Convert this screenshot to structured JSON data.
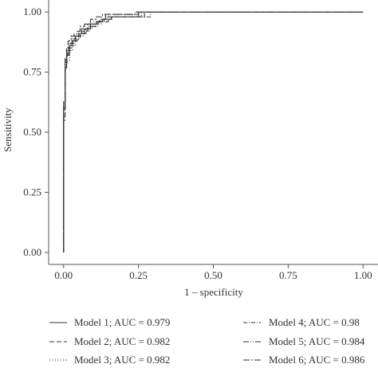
{
  "chart_data": {
    "type": "line",
    "title": "",
    "xlabel": "1 – specificity",
    "ylabel": "Sensitivity",
    "xlim": [
      -0.05,
      1.05
    ],
    "ylim": [
      -0.05,
      1.05
    ],
    "x_ticks": [
      0.0,
      0.25,
      0.5,
      0.75,
      1.0
    ],
    "x_tick_labels": [
      "0.00",
      "0.25",
      "0.50",
      "0.75",
      "1.00"
    ],
    "y_ticks": [
      0.0,
      0.25,
      0.5,
      0.75,
      1.0
    ],
    "y_tick_labels": [
      "0.00",
      "0.25",
      "0.50",
      "0.75",
      "1.00"
    ],
    "grid": false,
    "legend_position": "bottom",
    "series": [
      {
        "name": "Model 1; AUC = 0.979",
        "dash": "",
        "x": [
          0,
          0,
          0.005,
          0.005,
          0.01,
          0.01,
          0.02,
          0.02,
          0.03,
          0.03,
          0.04,
          0.04,
          0.05,
          0.05,
          0.07,
          0.07,
          0.09,
          0.09,
          0.11,
          0.11,
          0.13,
          0.13,
          0.16,
          0.16,
          0.25,
          0.25,
          0.28,
          0.28,
          1.0
        ],
        "y": [
          0,
          0.6,
          0.6,
          0.78,
          0.78,
          0.82,
          0.82,
          0.86,
          0.86,
          0.88,
          0.88,
          0.9,
          0.9,
          0.91,
          0.91,
          0.93,
          0.93,
          0.95,
          0.95,
          0.96,
          0.96,
          0.97,
          0.97,
          0.98,
          0.98,
          1.0,
          1.0,
          1.0,
          1.0
        ]
      },
      {
        "name": "Model 2; AUC = 0.982",
        "dash": "6 3",
        "x": [
          0,
          0,
          0.005,
          0.005,
          0.01,
          0.01,
          0.015,
          0.015,
          0.025,
          0.025,
          0.035,
          0.035,
          0.045,
          0.045,
          0.06,
          0.06,
          0.08,
          0.08,
          0.1,
          0.1,
          0.12,
          0.12,
          0.15,
          0.15,
          0.27,
          0.27,
          1.0
        ],
        "y": [
          0,
          0.55,
          0.55,
          0.77,
          0.77,
          0.82,
          0.82,
          0.85,
          0.85,
          0.87,
          0.87,
          0.89,
          0.89,
          0.9,
          0.9,
          0.92,
          0.92,
          0.94,
          0.94,
          0.95,
          0.95,
          0.96,
          0.96,
          0.98,
          0.98,
          1.0,
          1.0
        ]
      },
      {
        "name": "Model 3; AUC = 0.982",
        "dash": "1.2 2.2",
        "x": [
          0,
          0,
          0.005,
          0.005,
          0.01,
          0.01,
          0.02,
          0.02,
          0.03,
          0.03,
          0.04,
          0.04,
          0.05,
          0.05,
          0.065,
          0.065,
          0.085,
          0.085,
          0.105,
          0.105,
          0.125,
          0.125,
          0.14,
          0.14,
          0.26,
          0.26,
          1.0
        ],
        "y": [
          0,
          0.58,
          0.58,
          0.76,
          0.76,
          0.8,
          0.8,
          0.84,
          0.84,
          0.86,
          0.86,
          0.88,
          0.88,
          0.9,
          0.9,
          0.92,
          0.92,
          0.94,
          0.94,
          0.95,
          0.95,
          0.97,
          0.97,
          0.98,
          0.98,
          1.0,
          1.0
        ]
      },
      {
        "name": "Model 4; AUC = 0.98",
        "dash": "5 2 1 2",
        "x": [
          0,
          0,
          0.005,
          0.005,
          0.012,
          0.012,
          0.02,
          0.02,
          0.03,
          0.03,
          0.045,
          0.045,
          0.055,
          0.055,
          0.075,
          0.075,
          0.095,
          0.095,
          0.115,
          0.115,
          0.135,
          0.135,
          0.16,
          0.16,
          0.29,
          0.29,
          1.0
        ],
        "y": [
          0,
          0.62,
          0.62,
          0.79,
          0.79,
          0.83,
          0.83,
          0.86,
          0.86,
          0.88,
          0.88,
          0.89,
          0.89,
          0.91,
          0.91,
          0.93,
          0.93,
          0.94,
          0.94,
          0.96,
          0.96,
          0.97,
          0.97,
          0.98,
          0.98,
          1.0,
          1.0
        ]
      },
      {
        "name": "Model 5; AUC = 0.984",
        "dash": "7 2 1 2 1 2",
        "x": [
          0,
          0,
          0.005,
          0.005,
          0.01,
          0.01,
          0.018,
          0.018,
          0.028,
          0.028,
          0.038,
          0.038,
          0.05,
          0.05,
          0.06,
          0.06,
          0.08,
          0.08,
          0.1,
          0.1,
          0.12,
          0.12,
          0.14,
          0.14,
          0.25,
          0.25,
          1.0
        ],
        "y": [
          0,
          0.6,
          0.6,
          0.8,
          0.8,
          0.84,
          0.84,
          0.87,
          0.87,
          0.89,
          0.89,
          0.9,
          0.9,
          0.92,
          0.92,
          0.93,
          0.93,
          0.95,
          0.95,
          0.96,
          0.96,
          0.97,
          0.97,
          0.99,
          0.99,
          1.0,
          1.0
        ]
      },
      {
        "name": "Model 6; AUC = 0.986",
        "dash": "8 2 2 2",
        "x": [
          0,
          0,
          0.005,
          0.005,
          0.01,
          0.01,
          0.015,
          0.015,
          0.025,
          0.025,
          0.035,
          0.035,
          0.045,
          0.045,
          0.055,
          0.055,
          0.07,
          0.07,
          0.09,
          0.09,
          0.11,
          0.11,
          0.13,
          0.13,
          0.24,
          0.24,
          1.0
        ],
        "y": [
          0,
          0.63,
          0.63,
          0.81,
          0.81,
          0.85,
          0.85,
          0.88,
          0.88,
          0.9,
          0.9,
          0.91,
          0.91,
          0.92,
          0.92,
          0.94,
          0.94,
          0.95,
          0.95,
          0.97,
          0.97,
          0.98,
          0.98,
          0.99,
          0.99,
          1.0,
          1.0
        ]
      }
    ]
  }
}
